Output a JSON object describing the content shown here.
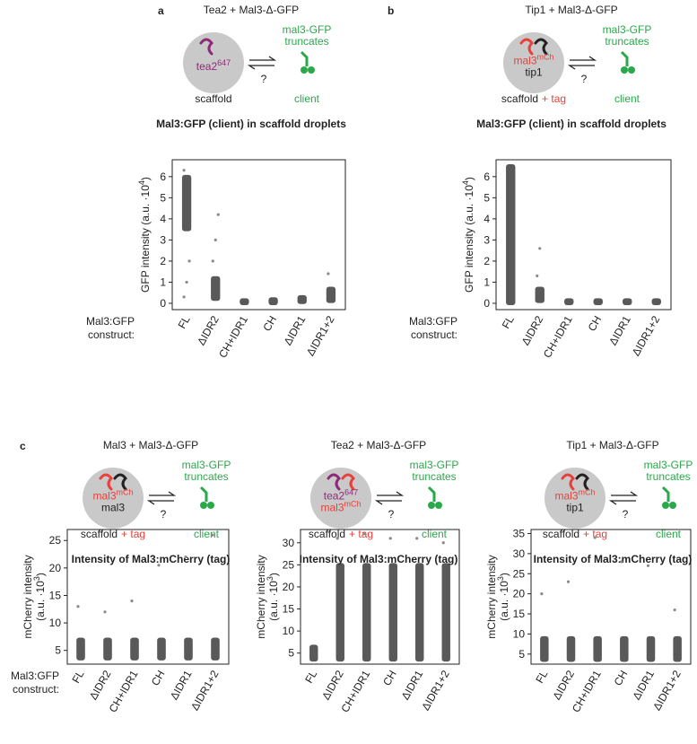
{
  "panels": {
    "a": {
      "letter": "a",
      "header": "Tea2 + Mal3-Δ-GFP",
      "inside": [
        {
          "parts": [
            "tea2",
            "647"
          ],
          "color": "#8e2a7a"
        }
      ],
      "client_name": [
        "mal3-GFP",
        "truncates"
      ],
      "question": "?",
      "scaffold": [
        "scaffold"
      ],
      "client": "client",
      "title": "Mal3:GFP (client) in scaffold droplets"
    },
    "b": {
      "letter": "b",
      "header": "Tip1 + Mal3-Δ-GFP",
      "inside": [
        {
          "parts": [
            "mal3",
            "mCh"
          ],
          "color": "#e8403a"
        },
        {
          "parts": [
            "tip1"
          ],
          "color": "#222222"
        }
      ],
      "client_name": [
        "mal3-GFP",
        "truncates"
      ],
      "question": "?",
      "scaffold": [
        "scaffold",
        "+ tag"
      ],
      "client": "client",
      "title": "Mal3:GFP (client) in scaffold droplets"
    },
    "c1": {
      "letter": "c",
      "header": "Mal3 + Mal3-Δ-GFP",
      "inside": [
        {
          "parts": [
            "mal3",
            "mCh"
          ],
          "color": "#e8403a"
        },
        {
          "parts": [
            "mal3"
          ],
          "color": "#222222"
        }
      ],
      "client_name": [
        "mal3-GFP",
        "truncates"
      ],
      "question": "?",
      "scaffold": [
        "scaffold",
        "+ tag"
      ],
      "client": "client",
      "title": "Intensity of Mal3:mCherry (tag)"
    },
    "c2": {
      "header": "Tea2 + Mal3-Δ-GFP",
      "inside": [
        {
          "parts": [
            "tea2",
            "647"
          ],
          "color": "#8e2a7a"
        },
        {
          "parts": [
            "mal3",
            "mCh"
          ],
          "color": "#e8403a"
        }
      ],
      "client_name": [
        "mal3-GFP",
        "truncates"
      ],
      "question": "?",
      "scaffold": [
        "scaffold",
        "+ tag"
      ],
      "client": "client",
      "title": "Intensity of Mal3:mCherry (tag)"
    },
    "c3": {
      "header": "Tip1 + Mal3-Δ-GFP",
      "inside": [
        {
          "parts": [
            "mal3",
            "mCh"
          ],
          "color": "#e8403a"
        },
        {
          "parts": [
            "tip1"
          ],
          "color": "#222222"
        }
      ],
      "client_name": [
        "mal3-GFP",
        "truncates"
      ],
      "question": "?",
      "scaffold": [
        "scaffold",
        "+ tag"
      ],
      "client": "client",
      "title": "Intensity of Mal3:mCherry (tag)"
    }
  },
  "chart_data": [
    {
      "type": "strip",
      "ylabel": [
        [
          "GFP intensity (a.u. ·10",
          "4",
          ")"
        ]
      ],
      "xlabel": [
        "Mal3:GFP",
        "construct:"
      ],
      "categories": [
        "FL",
        "ΔIDR2",
        "CH+IDR1",
        "CH",
        "ΔIDR1",
        "ΔIDR1+2"
      ],
      "bands": [
        [
          3.5,
          6
        ],
        [
          0.2,
          1.2
        ],
        [
          0,
          0.15
        ],
        [
          0,
          0.2
        ],
        [
          0.05,
          0.3
        ],
        [
          0.1,
          0.7
        ]
      ],
      "outliers": [
        [
          0.3,
          1,
          2,
          6.3
        ],
        [
          2,
          3,
          4.2
        ],
        [],
        [],
        [],
        [
          1.4
        ]
      ],
      "ylim": [
        -0.3,
        6.8
      ],
      "yticks": [
        0,
        1,
        2,
        3,
        4,
        5,
        6
      ],
      "color": "#3c3c3c"
    },
    {
      "type": "strip",
      "ylabel": [
        [
          "GFP intensity (a.u. ·10",
          "4",
          ")"
        ]
      ],
      "xlabel": [
        "Mal3:GFP",
        "construct:"
      ],
      "categories": [
        "FL",
        "ΔIDR2",
        "CH+IDR1",
        "CH",
        "ΔIDR1",
        "ΔIDR1+2"
      ],
      "bands": [
        [
          0,
          6.5
        ],
        [
          0.1,
          0.7
        ],
        [
          0,
          0.15
        ],
        [
          0,
          0.15
        ],
        [
          0,
          0.15
        ],
        [
          0,
          0.15
        ]
      ],
      "outliers": [
        [],
        [
          1.3,
          2.6
        ],
        [],
        [],
        [],
        []
      ],
      "ylim": [
        -0.3,
        6.8
      ],
      "yticks": [
        0,
        1,
        2,
        3,
        4,
        5,
        6
      ],
      "color": "#3c3c3c"
    },
    {
      "type": "strip",
      "ylabel": [
        [
          "mCherry intensity"
        ],
        [
          "(a.u. ·10",
          "3",
          ")"
        ]
      ],
      "xlabel": [
        "Mal3:GFP",
        "construct:"
      ],
      "categories": [
        "FL",
        "ΔIDR2",
        "CH+IDR1",
        "CH",
        "ΔIDR1",
        "ΔIDR1+2"
      ],
      "bands": [
        [
          3.5,
          7
        ],
        [
          3.5,
          7
        ],
        [
          3.5,
          7
        ],
        [
          3.5,
          7
        ],
        [
          3.5,
          7
        ],
        [
          3.5,
          7
        ]
      ],
      "outliers": [
        [
          13
        ],
        [
          12
        ],
        [
          14
        ],
        [
          20.5
        ],
        [
          22
        ],
        [
          26
        ]
      ],
      "ylim": [
        2.5,
        27
      ],
      "yticks": [
        5,
        10,
        15,
        20,
        25
      ],
      "color": "#3c3c3c"
    },
    {
      "type": "strip",
      "ylabel": [
        [
          "mCherry intensity"
        ],
        [
          "(a.u. ·10",
          "3",
          ")"
        ]
      ],
      "categories": [
        "FL",
        "ΔIDR2",
        "CH+IDR1",
        "CH",
        "ΔIDR1",
        "ΔIDR1+2"
      ],
      "bands": [
        [
          3.5,
          6.5
        ],
        [
          3.5,
          25
        ],
        [
          3.5,
          25
        ],
        [
          3.5,
          25
        ],
        [
          3.5,
          25
        ],
        [
          3.5,
          25
        ]
      ],
      "outliers": [
        [],
        [
          31
        ],
        [
          32
        ],
        [
          31
        ],
        [
          31
        ],
        [
          30
        ]
      ],
      "ylim": [
        2.5,
        33
      ],
      "yticks": [
        5,
        10,
        15,
        20,
        25,
        30
      ],
      "color": "#3c3c3c"
    },
    {
      "type": "strip",
      "ylabel": [
        [
          "mCherry intensity"
        ],
        [
          "(a.u. ·10",
          "3",
          ")"
        ]
      ],
      "categories": [
        "FL",
        "ΔIDR2",
        "CH+IDR1",
        "CH",
        "ΔIDR1",
        "ΔIDR1+2"
      ],
      "bands": [
        [
          3.5,
          9
        ],
        [
          3.5,
          9
        ],
        [
          3.5,
          9
        ],
        [
          3.5,
          9
        ],
        [
          3.5,
          9
        ],
        [
          3.5,
          9
        ]
      ],
      "outliers": [
        [
          20
        ],
        [
          23
        ],
        [
          34
        ],
        [
          28
        ],
        [
          27
        ],
        [
          16
        ]
      ],
      "ylim": [
        2.5,
        36
      ],
      "yticks": [
        5,
        10,
        15,
        20,
        25,
        30,
        35
      ],
      "color": "#3c3c3c"
    }
  ]
}
